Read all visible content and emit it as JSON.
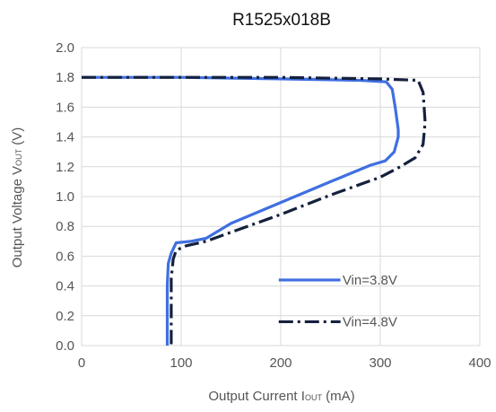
{
  "chart_data": {
    "type": "line",
    "title": "R1525x018B",
    "xlabel": "Output Current I",
    "xlabel_sub": "OUT",
    "xlabel_unit": " (mA)",
    "ylabel": "Output Voltage V",
    "ylabel_sub": "OUT",
    "ylabel_unit": " (V)",
    "xlim": [
      0,
      400
    ],
    "ylim": [
      0,
      2.0
    ],
    "xticks": [
      "0",
      "100",
      "200",
      "300",
      "400"
    ],
    "yticks": [
      "0.0",
      "0.2",
      "0.4",
      "0.6",
      "0.8",
      "1.0",
      "1.2",
      "1.4",
      "1.6",
      "1.8",
      "2.0"
    ],
    "grid": true,
    "legend_position": "lower-right",
    "series": [
      {
        "name": "Vin=3.8V",
        "color": "#3f6fe0",
        "style": "solid",
        "points": [
          [
            0,
            1.8
          ],
          [
            100,
            1.8
          ],
          [
            200,
            1.79
          ],
          [
            280,
            1.78
          ],
          [
            306,
            1.77
          ],
          [
            312,
            1.72
          ],
          [
            315,
            1.6
          ],
          [
            318,
            1.45
          ],
          [
            318,
            1.4
          ],
          [
            314,
            1.3
          ],
          [
            305,
            1.24
          ],
          [
            290,
            1.21
          ],
          [
            250,
            1.1
          ],
          [
            200,
            0.96
          ],
          [
            150,
            0.82
          ],
          [
            125,
            0.72
          ],
          [
            110,
            0.7
          ],
          [
            95,
            0.69
          ],
          [
            90,
            0.62
          ],
          [
            87,
            0.55
          ],
          [
            86,
            0.4
          ],
          [
            86,
            0.2
          ],
          [
            86,
            0.0
          ]
        ]
      },
      {
        "name": "Vin=4.8V",
        "color": "#14213d",
        "style": "dashdot",
        "points": [
          [
            0,
            1.8
          ],
          [
            100,
            1.8
          ],
          [
            200,
            1.8
          ],
          [
            300,
            1.79
          ],
          [
            338,
            1.78
          ],
          [
            343,
            1.7
          ],
          [
            345,
            1.5
          ],
          [
            343,
            1.35
          ],
          [
            335,
            1.26
          ],
          [
            320,
            1.2
          ],
          [
            300,
            1.13
          ],
          [
            250,
            1.01
          ],
          [
            200,
            0.88
          ],
          [
            150,
            0.76
          ],
          [
            125,
            0.7
          ],
          [
            105,
            0.67
          ],
          [
            95,
            0.64
          ],
          [
            92,
            0.58
          ],
          [
            90,
            0.45
          ],
          [
            90,
            0.3
          ],
          [
            90,
            0.1
          ],
          [
            90,
            0.0
          ]
        ]
      }
    ]
  }
}
